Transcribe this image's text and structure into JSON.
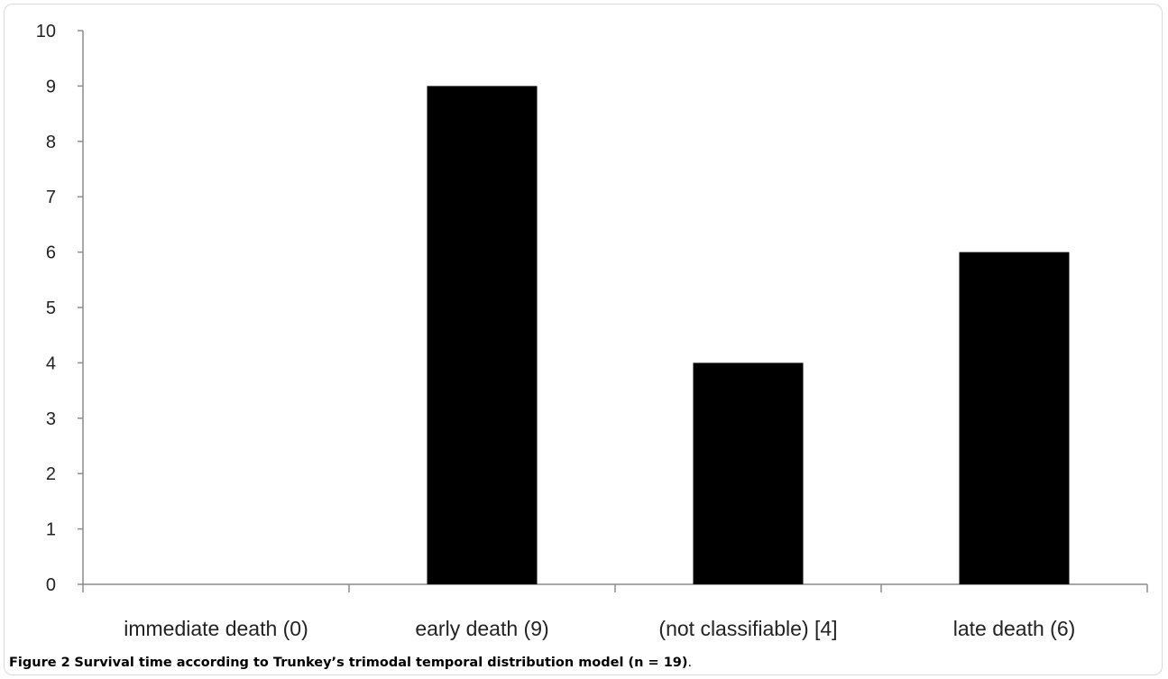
{
  "chart_data": {
    "type": "bar",
    "categories": [
      "immediate death (0)",
      "early death (9)",
      "(not classifiable) [4]",
      "late death (6)"
    ],
    "values": [
      0,
      9,
      4,
      6
    ],
    "ylim": [
      0,
      10
    ],
    "yticks": [
      "0",
      "1",
      "2",
      "3",
      "4",
      "5",
      "6",
      "7",
      "8",
      "9",
      "10"
    ],
    "bar_color": "#000000",
    "grid": false,
    "legend": "none"
  },
  "caption": {
    "label": "Figure 2",
    "text": "Survival time according to Trunkey’s trimodal temporal distribution model (n = 19)",
    "end": "."
  }
}
